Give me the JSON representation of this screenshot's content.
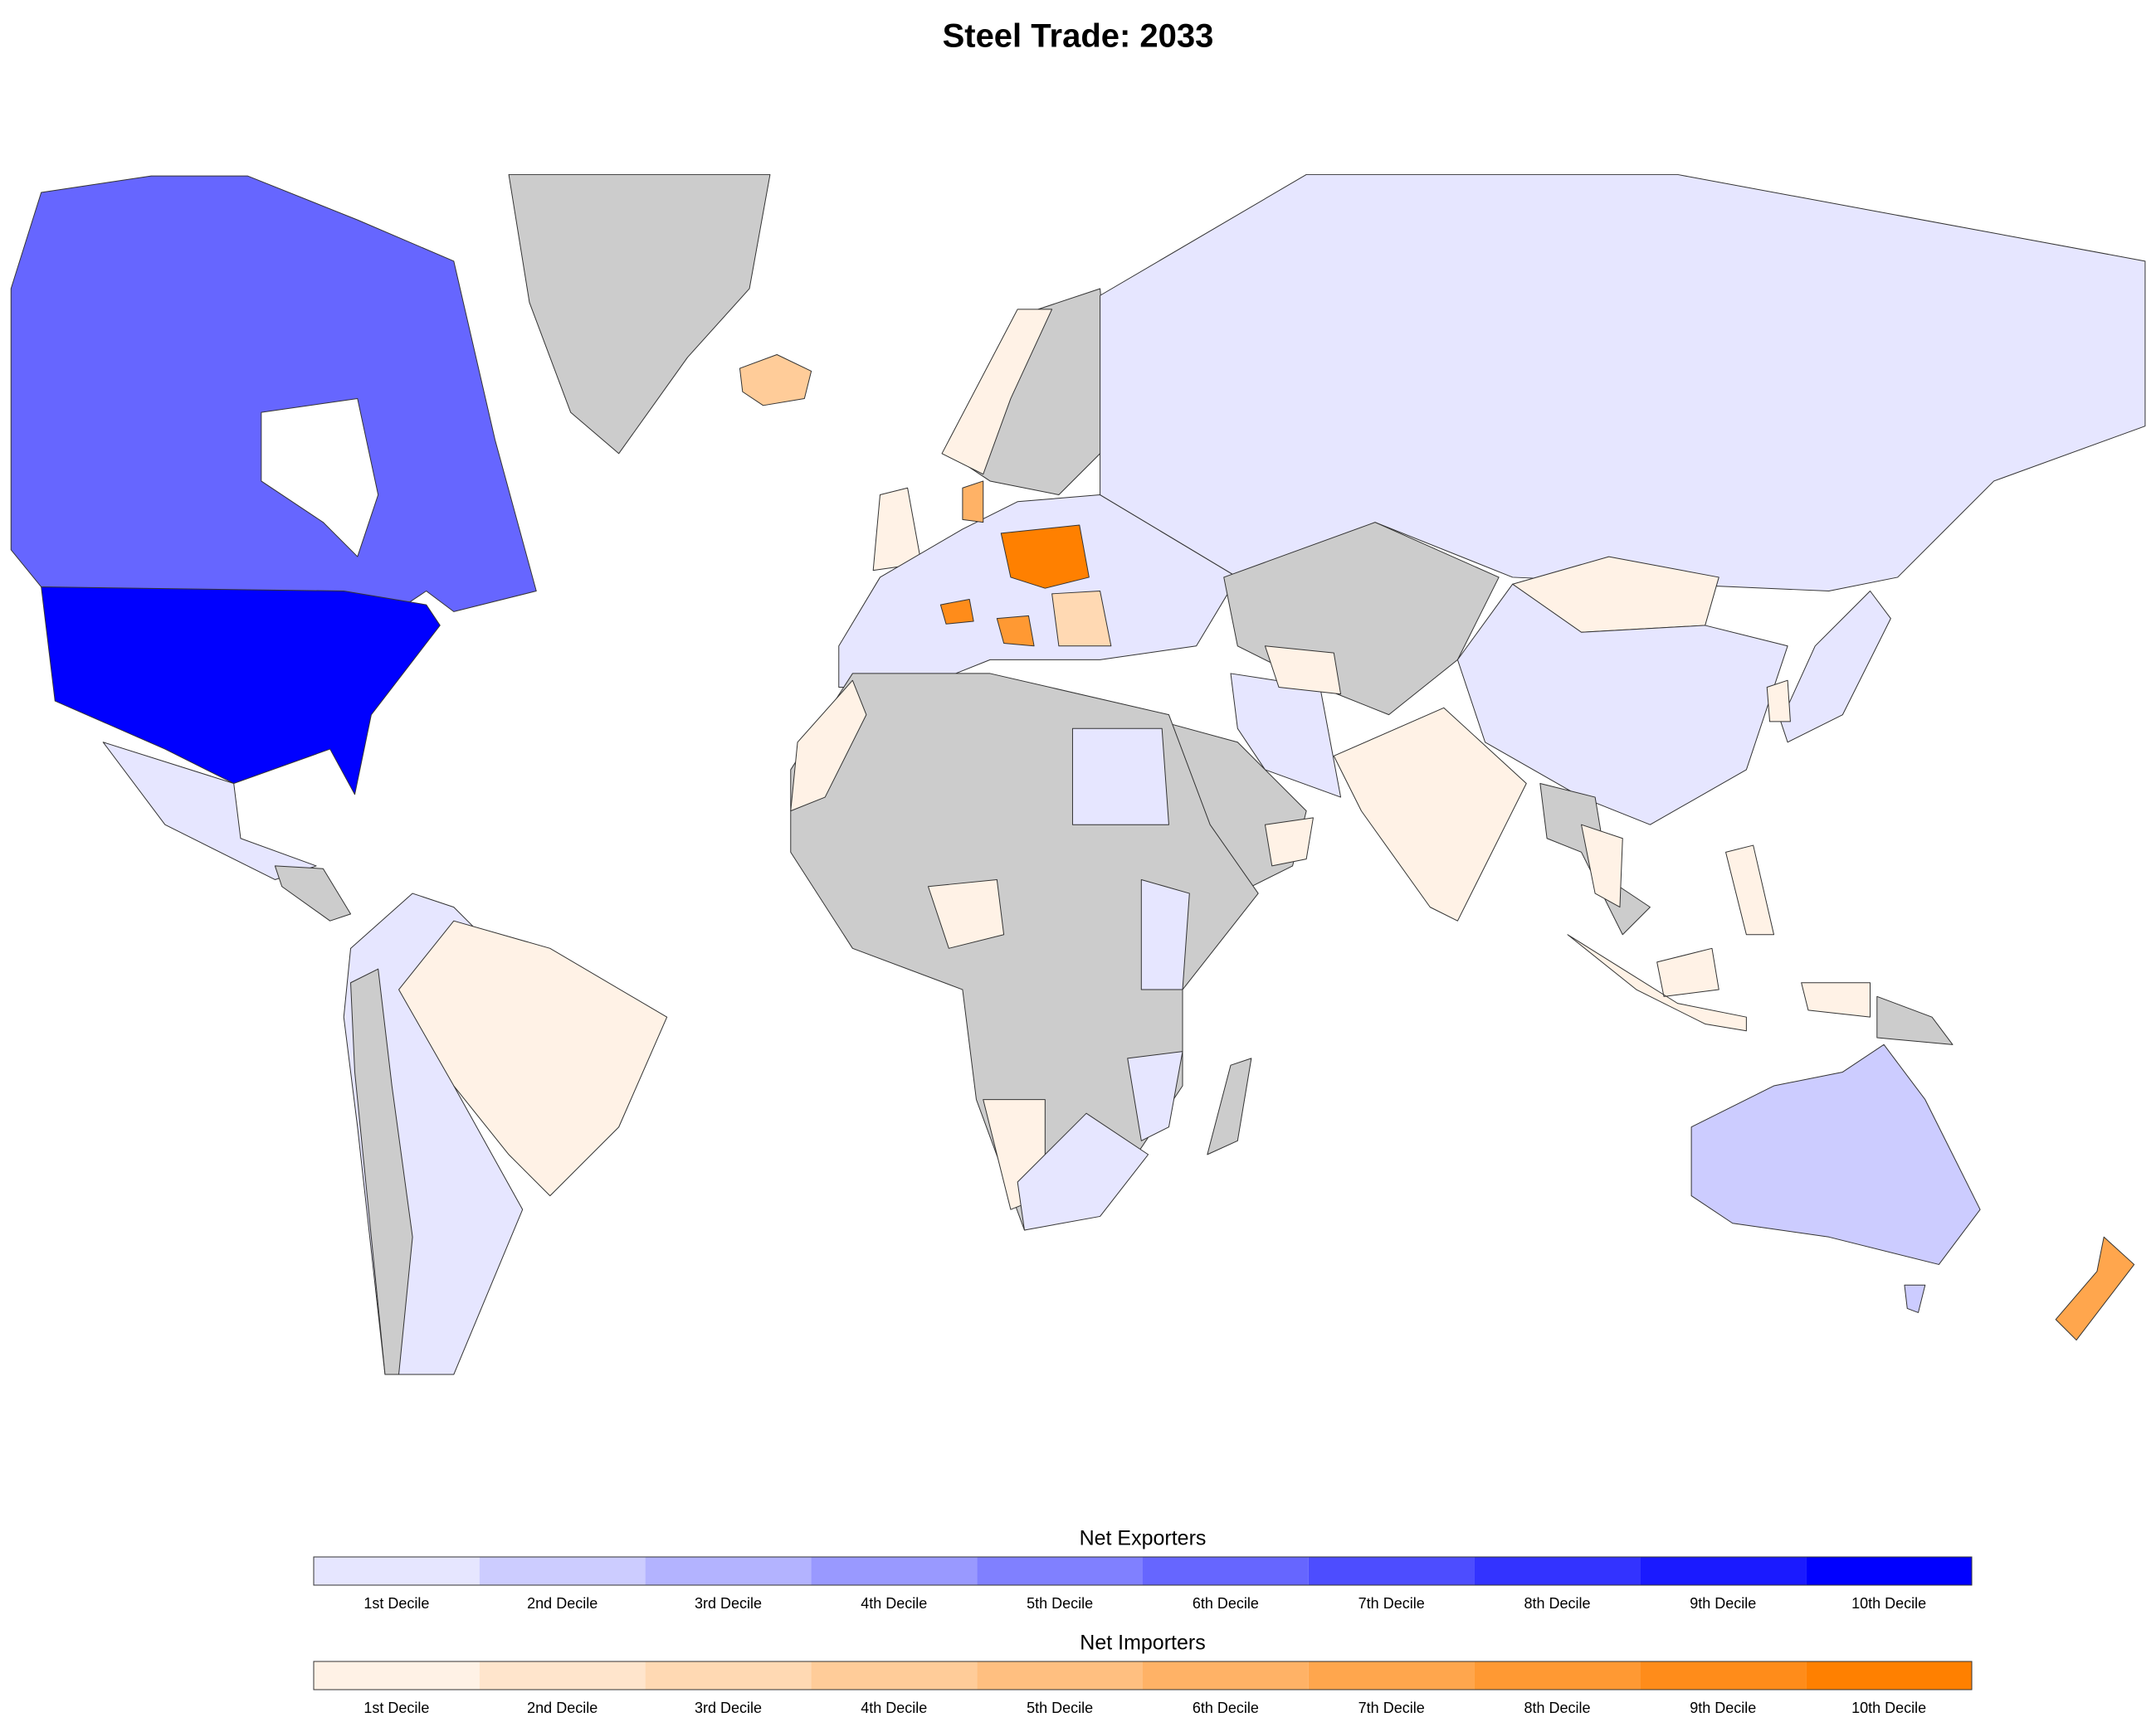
{
  "title": "Steel Trade: 2033",
  "legends": [
    {
      "title": "Net Exporters",
      "items": [
        {
          "label": "1st Decile",
          "color": "#e6e6ff"
        },
        {
          "label": "2nd Decile",
          "color": "#ccccff"
        },
        {
          "label": "3rd Decile",
          "color": "#b3b3ff"
        },
        {
          "label": "4th Decile",
          "color": "#9999ff"
        },
        {
          "label": "5th Decile",
          "color": "#8080ff"
        },
        {
          "label": "6th Decile",
          "color": "#6666ff"
        },
        {
          "label": "7th Decile",
          "color": "#4d4dff"
        },
        {
          "label": "8th Decile",
          "color": "#3333ff"
        },
        {
          "label": "9th Decile",
          "color": "#1a1aff"
        },
        {
          "label": "10th Decile",
          "color": "#0000ff"
        }
      ]
    },
    {
      "title": "Net Importers",
      "items": [
        {
          "label": "1st Decile",
          "color": "#fff2e6"
        },
        {
          "label": "2nd Decile",
          "color": "#ffe5cc"
        },
        {
          "label": "3rd Decile",
          "color": "#ffd9b3"
        },
        {
          "label": "4th Decile",
          "color": "#ffcc99"
        },
        {
          "label": "5th Decile",
          "color": "#ffbf80"
        },
        {
          "label": "6th Decile",
          "color": "#ffb266"
        },
        {
          "label": "7th Decile",
          "color": "#ffa64d"
        },
        {
          "label": "8th Decile",
          "color": "#ff9933"
        },
        {
          "label": "9th Decile",
          "color": "#ff8c1a"
        },
        {
          "label": "10th Decile",
          "color": "#ff8000"
        }
      ]
    }
  ]
}
